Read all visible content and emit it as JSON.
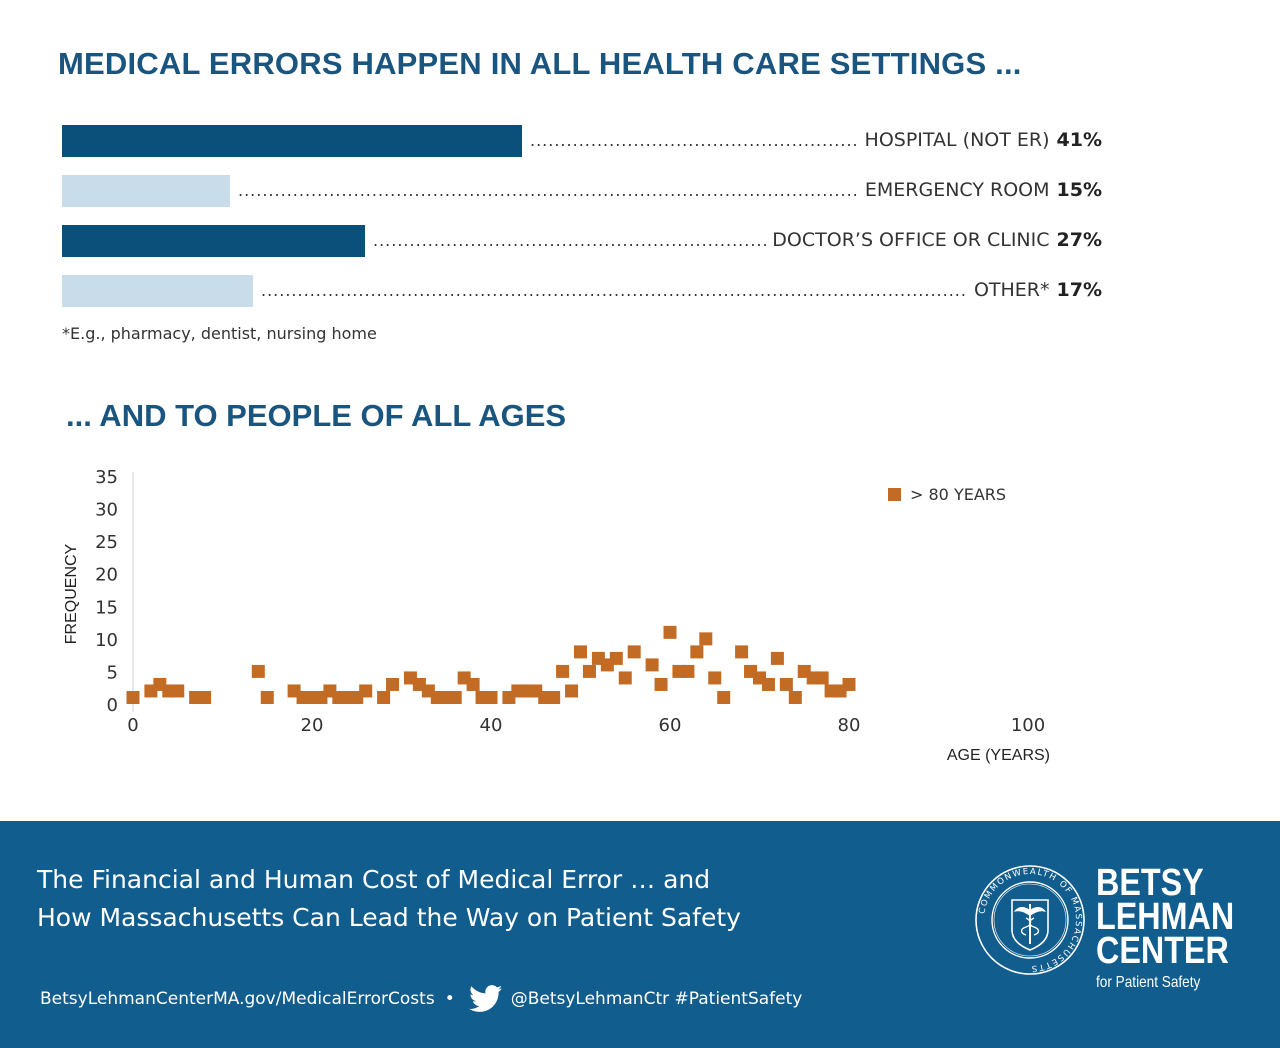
{
  "headline1": "MEDICAL ERRORS HAPPEN IN ALL HEALTH CARE SETTINGS ...",
  "headline2": "... AND TO PEOPLE OF ALL AGES",
  "settings": {
    "footnote": "*E.g., pharmacy, dentist, nursing home",
    "rows": [
      {
        "label": "HOSPITAL (NOT ER)",
        "pct": "41%",
        "value": 41,
        "shade": "dark"
      },
      {
        "label": "EMERGENCY ROOM",
        "pct": "15%",
        "value": 15,
        "shade": "light"
      },
      {
        "label": "DOCTOR’S OFFICE OR CLINIC",
        "pct": "27%",
        "value": 27,
        "shade": "dark"
      },
      {
        "label": "OTHER*",
        "pct": "17%",
        "value": 17,
        "shade": "light"
      }
    ]
  },
  "chart_data": [
    {
      "type": "bar",
      "orientation": "horizontal",
      "categories": [
        "HOSPITAL (NOT ER)",
        "EMERGENCY ROOM",
        "DOCTOR’S OFFICE OR CLINIC",
        "OTHER*"
      ],
      "values": [
        41,
        15,
        27,
        17
      ],
      "unit": "%",
      "title": "MEDICAL ERRORS HAPPEN IN ALL HEALTH CARE SETTINGS ..."
    },
    {
      "type": "scatter",
      "title": "... AND TO PEOPLE OF ALL AGES",
      "xlabel": "AGE (YEARS)",
      "ylabel": "FREQUENCY",
      "xlim": [
        0,
        100
      ],
      "ylim": [
        0,
        35
      ],
      "xticks": [
        "0",
        "20",
        "40",
        "60",
        "80",
        "100"
      ],
      "yticks": [
        "0",
        "5",
        "10",
        "15",
        "20",
        "25",
        "30",
        "35"
      ],
      "legend": "> 80 YEARS",
      "legend_position": "top-right",
      "series": [
        {
          "name": "> 80 YEARS",
          "color": "#c26b25",
          "x": [
            0,
            2,
            3,
            4,
            5,
            7,
            8,
            14,
            15,
            18,
            19,
            20,
            21,
            22,
            23,
            24,
            25,
            26,
            28,
            29,
            31,
            32,
            33,
            34,
            35,
            36,
            37,
            38,
            39,
            40,
            42,
            43,
            44,
            45,
            46,
            47,
            48,
            49,
            50,
            51,
            52,
            53,
            54,
            55,
            56,
            58,
            59,
            60,
            61,
            62,
            63,
            64,
            65,
            66,
            68,
            69,
            70,
            71,
            72,
            73,
            74,
            75,
            76,
            77,
            78,
            79,
            80
          ],
          "y": [
            1,
            2,
            3,
            2,
            2,
            1,
            1,
            5,
            1,
            2,
            1,
            1,
            1,
            2,
            1,
            1,
            1,
            2,
            1,
            3,
            4,
            3,
            2,
            1,
            1,
            1,
            4,
            3,
            1,
            1,
            1,
            2,
            2,
            2,
            1,
            1,
            5,
            2,
            8,
            5,
            7,
            6,
            7,
            4,
            8,
            6,
            3,
            11,
            5,
            5,
            8,
            10,
            4,
            1,
            8,
            5,
            4,
            3,
            7,
            3,
            1,
            5,
            4,
            4,
            2,
            2,
            3
          ]
        }
      ]
    }
  ],
  "banner": {
    "title_line1": "The Financial and Human Cost of Medical Error … and",
    "title_line2": "How Massachusetts Can Lead the Way on Patient Safety",
    "url": "BetsyLehmanCenterMA.gov/MedicalErrorCosts",
    "bullet": "•",
    "twitter_handle": "@BetsyLehmanCtr #PatientSafety",
    "brand_line1": "BETSY",
    "brand_line2": "LEHMAN",
    "brand_line3": "CENTER",
    "brand_sub": "for Patient Safety",
    "seal_text": "COMMONWEALTH OF MASSACHUSETTS"
  },
  "colors": {
    "headline": "#1a5580",
    "bar_dark": "#0b4f7b",
    "bar_light": "#c8dcea",
    "marker": "#c26b25",
    "banner_bg": "#115d8e"
  }
}
